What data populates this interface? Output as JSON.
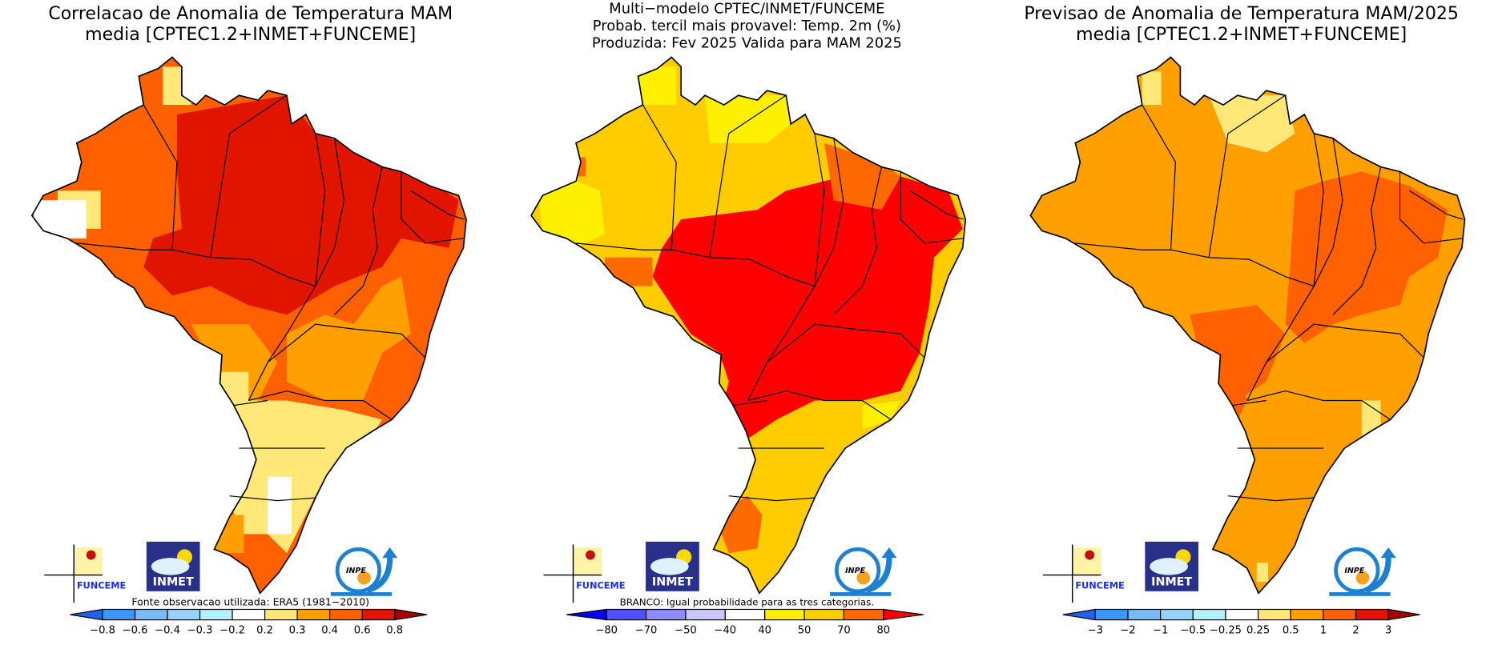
{
  "panels": [
    {
      "title_lines": [
        "Correlacao de Anomalia de Temperatura MAM",
        "media [CPTEC1.2+INMET+FUNCEME]"
      ],
      "footnote": "Fonte observacao utilizada: ERA5 (1981−2010)",
      "colorbar": {
        "labels": [
          "−0.8",
          "−0.6",
          "−0.4",
          "−0.3",
          "−0.2",
          "0.2",
          "0.3",
          "0.4",
          "0.6",
          "0.8"
        ],
        "colors": [
          "#1e64e6",
          "#3c96f5",
          "#78b9fa",
          "#96d2fa",
          "#b4f0fa",
          "#ffffff",
          "#ffe878",
          "#ffa000",
          "#ff6000",
          "#e11400",
          "#a50000"
        ]
      }
    },
    {
      "title_lines": [
        "Multi−modelo CPTEC/INMET/FUNCEME",
        "Probab. tercil mais provavel: Temp. 2m (%)",
        "Produzida: Fev 2025  Valida para MAM 2025"
      ],
      "footnote": "BRANCO: Igual probabilidade para as tres categorias.",
      "colorbar": {
        "labels": [
          "−80",
          "−70",
          "−50",
          "−40",
          "40",
          "50",
          "70",
          "80"
        ],
        "colors": [
          "#0000ff",
          "#5050ff",
          "#8c8cff",
          "#c8c8ff",
          "#ffffff",
          "#fff000",
          "#ffcc00",
          "#ff6a00",
          "#ff0000"
        ]
      }
    },
    {
      "title_lines": [
        "Previsao de Anomalia de Temperatura MAM/2025",
        "media [CPTEC1.2+INMET+FUNCEME]"
      ],
      "footnote": "",
      "colorbar": {
        "labels": [
          "−3",
          "−2",
          "−1",
          "−0.5",
          "−0.25",
          "0.25",
          "0.5",
          "1",
          "2",
          "3"
        ],
        "colors": [
          "#1e64e6",
          "#3c96f5",
          "#78b9fa",
          "#96d2fa",
          "#b4f0fa",
          "#ffffff",
          "#ffe878",
          "#ffa000",
          "#ff6000",
          "#e11400",
          "#a50000"
        ]
      }
    }
  ],
  "logos": {
    "funceme": "FUNCEME",
    "inmet": "INMET",
    "inpe": "INPE"
  }
}
